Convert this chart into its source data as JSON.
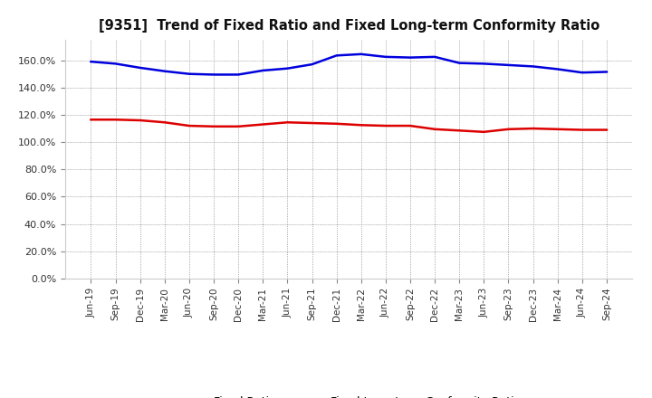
{
  "title": "[9351]  Trend of Fixed Ratio and Fixed Long-term Conformity Ratio",
  "x_labels": [
    "Jun-19",
    "Sep-19",
    "Dec-19",
    "Mar-20",
    "Jun-20",
    "Sep-20",
    "Dec-20",
    "Mar-21",
    "Jun-21",
    "Sep-21",
    "Dec-21",
    "Mar-22",
    "Jun-22",
    "Sep-22",
    "Dec-22",
    "Mar-23",
    "Jun-23",
    "Sep-23",
    "Dec-23",
    "Mar-24",
    "Jun-24",
    "Sep-24"
  ],
  "fixed_ratio": [
    159.0,
    157.5,
    154.5,
    152.0,
    150.0,
    149.5,
    149.5,
    152.5,
    154.0,
    157.0,
    163.5,
    164.5,
    162.5,
    162.0,
    162.5,
    158.0,
    157.5,
    156.5,
    155.5,
    153.5,
    151.0,
    151.5
  ],
  "fixed_lt_ratio": [
    116.5,
    116.5,
    116.0,
    114.5,
    112.0,
    111.5,
    111.5,
    113.0,
    114.5,
    114.0,
    113.5,
    112.5,
    112.0,
    112.0,
    109.5,
    108.5,
    107.5,
    109.5,
    110.0,
    109.5,
    109.0,
    109.0
  ],
  "fixed_ratio_color": "#0000dd",
  "fixed_lt_ratio_color": "#dd0000",
  "background_color": "#ffffff",
  "plot_bg_color": "#ffffff",
  "grid_color": "#888888",
  "ylim": [
    0,
    175
  ],
  "yticks": [
    0,
    20,
    40,
    60,
    80,
    100,
    120,
    140,
    160
  ],
  "legend_fixed_ratio": "Fixed Ratio",
  "legend_fixed_lt_ratio": "Fixed Long-term Conformity Ratio",
  "line_width": 1.8
}
